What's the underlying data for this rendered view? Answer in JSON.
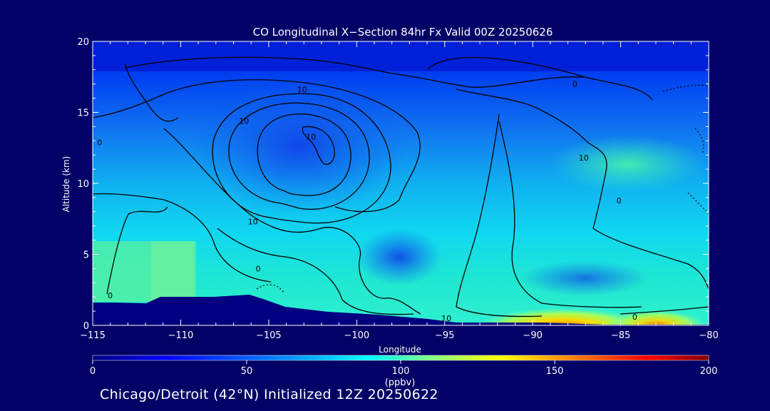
{
  "chart_data": {
    "type": "heatmap",
    "title": "CO Longitudinal X−Section 84hr  Fx Valid 00Z 20250626",
    "xlabel": "Longitude",
    "ylabel": "Altitude (km)",
    "xlim": [
      -115,
      -80
    ],
    "ylim": [
      0,
      20
    ],
    "x_ticks": [
      -115,
      -110,
      -105,
      -100,
      -95,
      -90,
      -85,
      -80
    ],
    "x_tick_labels": [
      "−115",
      "−110",
      "−105",
      "−100",
      "−95",
      "−90",
      "−85",
      "−80"
    ],
    "y_ticks": [
      0,
      5,
      10,
      15,
      20
    ],
    "y_tick_labels": [
      "0",
      "5",
      "10",
      "15",
      "20"
    ],
    "colorbar": {
      "label": "(ppbv)",
      "range": [
        0,
        200
      ],
      "ticks": [
        0,
        50,
        100,
        150,
        200
      ],
      "tick_labels": [
        "0",
        "50",
        "100",
        "150",
        "200"
      ],
      "colors": [
        "#000080",
        "#0000ff",
        "#0080ff",
        "#00ffff",
        "#80ff80",
        "#ffff00",
        "#ff8000",
        "#ff0000",
        "#800000"
      ]
    },
    "contour_labels": [
      {
        "text": "10",
        "lon": -103.1,
        "alt": 16.6
      },
      {
        "text": "10",
        "lon": -106.4,
        "alt": 14.4
      },
      {
        "text": "10",
        "lon": -102.6,
        "alt": 13.3
      },
      {
        "text": "0",
        "lon": -114.6,
        "alt": 12.9
      },
      {
        "text": "0",
        "lon": -87.6,
        "alt": 17.0
      },
      {
        "text": "10",
        "lon": -87.1,
        "alt": 11.8
      },
      {
        "text": "0",
        "lon": -85.1,
        "alt": 8.8
      },
      {
        "text": "10",
        "lon": -105.9,
        "alt": 7.3
      },
      {
        "text": "0",
        "lon": -105.6,
        "alt": 4.0
      },
      {
        "text": "0",
        "lon": -114.0,
        "alt": 2.1
      },
      {
        "text": "10",
        "lon": -94.9,
        "alt": 0.5
      },
      {
        "text": "0",
        "lon": -84.2,
        "alt": 0.6
      }
    ]
  },
  "footer": "Chicago/Detroit (42°N) Initialized 12Z 20250622"
}
